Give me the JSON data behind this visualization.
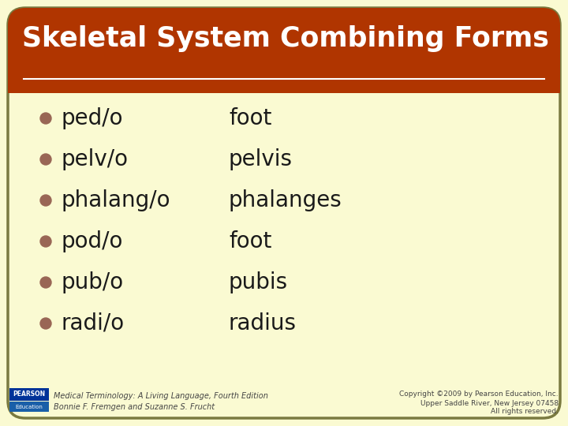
{
  "title": "Skeletal System Combining Forms",
  "title_color": "#FFFFFF",
  "title_bg_color": "#B03500",
  "background_color": "#FAFAD2",
  "border_color": "#7A7A40",
  "bullet_color": "#996655",
  "text_color": "#1A1A1A",
  "items": [
    [
      "ped/o",
      "foot"
    ],
    [
      "pelv/o",
      "pelvis"
    ],
    [
      "phalang/o",
      "phalanges"
    ],
    [
      "pod/o",
      "foot"
    ],
    [
      "pub/o",
      "pubis"
    ],
    [
      "radi/o",
      "radius"
    ]
  ],
  "footer_left_line1": "Medical Terminology: A Living Language, Fourth Edition",
  "footer_left_line2": "Bonnie F. Fremgen and Suzanne S. Frucht",
  "footer_right_line1": "Copyright ©2009 by Pearson Education, Inc.",
  "footer_right_line2": "Upper Saddle River, New Jersey 07458",
  "footer_right_line3": "All rights reserved.",
  "footer_color": "#444444",
  "pearson_box_color1": "#003399",
  "pearson_box_color2": "#1a5fa8"
}
